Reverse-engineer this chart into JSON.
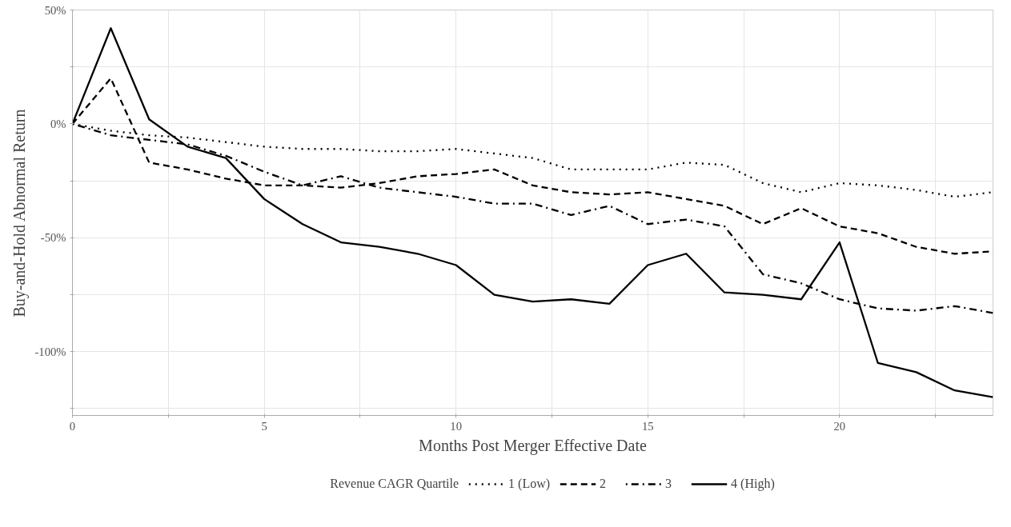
{
  "chart_data": {
    "type": "line",
    "xlabel": "Months Post Merger Effective Date",
    "ylabel": "Buy-and-Hold Abnormal Return",
    "legend_title": "Revenue CAGR Quartile",
    "x": [
      0,
      1,
      2,
      3,
      4,
      5,
      6,
      7,
      8,
      9,
      10,
      11,
      12,
      13,
      14,
      15,
      16,
      17,
      18,
      19,
      20,
      21,
      22,
      23,
      24
    ],
    "xlim": [
      0,
      24
    ],
    "xticks": [
      0,
      {
        "value": 2.5,
        "label": null
      },
      5,
      {
        "value": 7.5,
        "label": null
      },
      10,
      {
        "value": 12.5,
        "label": null
      },
      15,
      {
        "value": 17.5,
        "label": null
      },
      20,
      {
        "value": 22.5,
        "label": null
      }
    ],
    "ylim": [
      -128,
      50
    ],
    "yticks": [
      {
        "value": -125,
        "label": null
      },
      {
        "value": -100,
        "label": "-100%"
      },
      {
        "value": -75,
        "label": null
      },
      {
        "value": -50,
        "label": "-50%"
      },
      {
        "value": -25,
        "label": null
      },
      {
        "value": 0,
        "label": "0%"
      },
      {
        "value": 25,
        "label": null
      },
      {
        "value": 50,
        "label": "50%"
      }
    ],
    "grid": true,
    "legend": "bottom",
    "marker": "none",
    "series": [
      {
        "name": "1 (Low)",
        "color": "#000000",
        "line_style": "dotted",
        "values": [
          0,
          -3,
          -5,
          -6,
          -8,
          -10,
          -11,
          -11,
          -12,
          -12,
          -11,
          -13,
          -15,
          -20,
          -20,
          -20,
          -17,
          -18,
          -26,
          -30,
          -26,
          -27,
          -29,
          -32,
          -30
        ]
      },
      {
        "name": "2",
        "color": "#000000",
        "line_style": "dashed",
        "values": [
          0,
          20,
          -17,
          -20,
          -24,
          -27,
          -27,
          -28,
          -26,
          -23,
          -22,
          -20,
          -27,
          -30,
          -31,
          -30,
          -33,
          -36,
          -44,
          -37,
          -45,
          -48,
          -54,
          -57,
          -56
        ]
      },
      {
        "name": "3",
        "color": "#000000",
        "line_style": "dashdot",
        "values": [
          0,
          -5,
          -7,
          -9,
          -14,
          -21,
          -27,
          -23,
          -28,
          -30,
          -32,
          -35,
          -35,
          -40,
          -36,
          -44,
          -42,
          -45,
          -66,
          -70,
          -77,
          -81,
          -82,
          -80,
          -83
        ]
      },
      {
        "name": "4 (High)",
        "color": "#000000",
        "line_style": "solid",
        "values": [
          0,
          42,
          2,
          -10,
          -15,
          -33,
          -44,
          -52,
          -54,
          -57,
          -62,
          -75,
          -78,
          -77,
          -79,
          -62,
          -57,
          -74,
          -75,
          -77,
          -52,
          -105,
          -109,
          -117,
          -120
        ]
      }
    ]
  }
}
